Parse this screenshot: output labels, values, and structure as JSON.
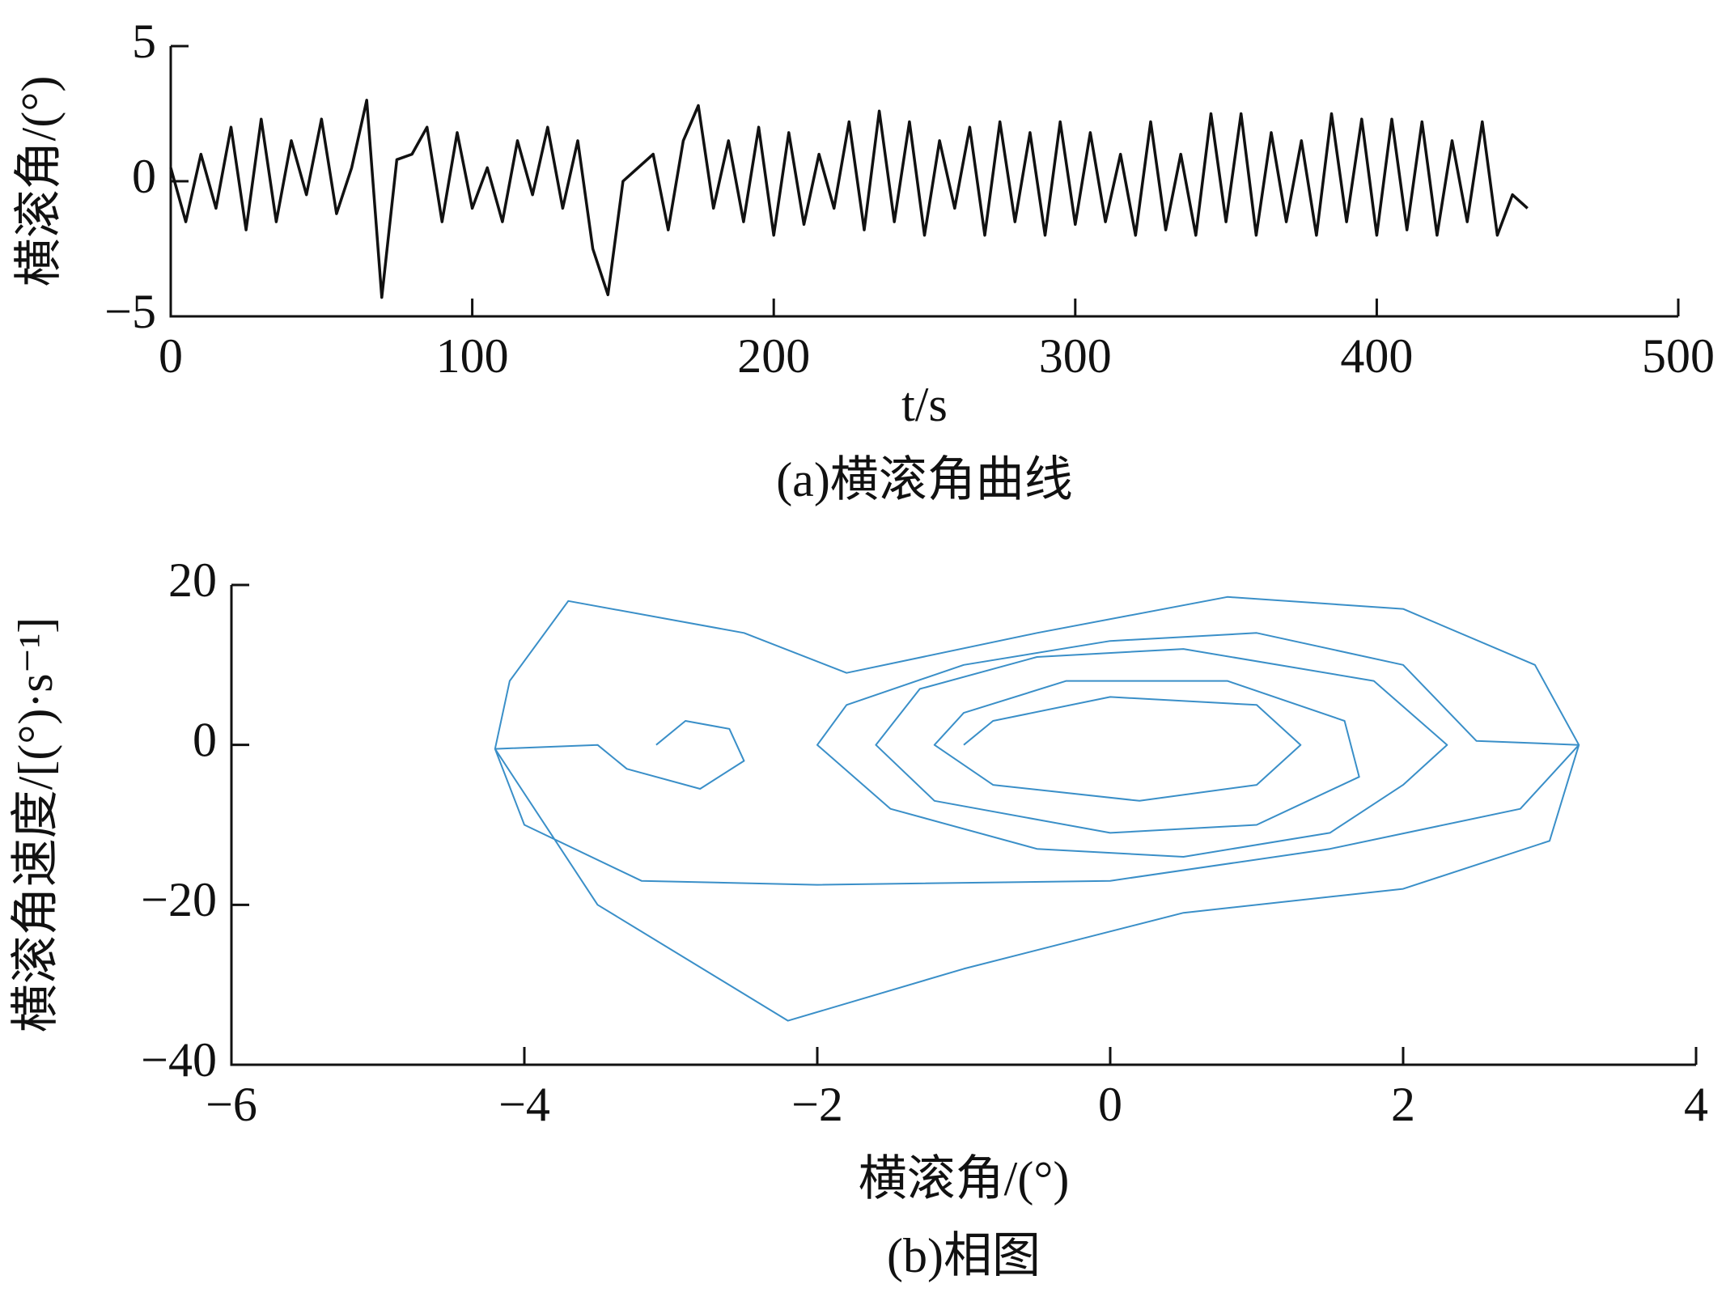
{
  "chart_data": [
    {
      "type": "line",
      "title": "(a)横滚角曲线",
      "x_label": "t/s",
      "y_label": "横滚角/(°)",
      "xlim": [
        0,
        500
      ],
      "xticks": [
        0,
        100,
        200,
        300,
        400,
        500
      ],
      "ylim": [
        -5,
        5
      ],
      "yticks": [
        {
          "value": -5,
          "label": "−5"
        },
        0,
        5
      ],
      "x": [
        0,
        5,
        10,
        15,
        20,
        25,
        30,
        35,
        40,
        45,
        50,
        55,
        60,
        65,
        70,
        75,
        80,
        85,
        90,
        95,
        100,
        105,
        110,
        115,
        120,
        125,
        130,
        135,
        140,
        145,
        150,
        155,
        160,
        165,
        170,
        175,
        180,
        185,
        190,
        195,
        200,
        205,
        210,
        215,
        220,
        225,
        230,
        235,
        240,
        245,
        250,
        255,
        260,
        265,
        270,
        275,
        280,
        285,
        290,
        295,
        300,
        305,
        310,
        315,
        320,
        325,
        330,
        335,
        340,
        345,
        350,
        355,
        360,
        365,
        370,
        375,
        380,
        385,
        390,
        395,
        400,
        405,
        410,
        415,
        420,
        425,
        430,
        435,
        440,
        445,
        450
      ],
      "series": [
        {
          "color": "#111111",
          "values": [
            0.5,
            -1.5,
            1,
            -1,
            2,
            -1.8,
            2.3,
            -1.5,
            1.5,
            -0.5,
            2.3,
            -1.2,
            0.5,
            3,
            -4.3,
            0.8,
            1,
            2,
            -1.5,
            1.8,
            -1,
            0.5,
            -1.5,
            1.5,
            -0.5,
            2,
            -1,
            1.5,
            -2.5,
            -4.2,
            0,
            0.5,
            1,
            -1.8,
            1.5,
            2.8,
            -1,
            1.5,
            -1.5,
            2,
            -2,
            1.8,
            -1.6,
            1,
            -1,
            2.2,
            -1.8,
            2.6,
            -1.5,
            2.2,
            -2,
            1.5,
            -1,
            2,
            -2,
            2.2,
            -1.5,
            1.8,
            -2,
            2.2,
            -1.6,
            1.8,
            -1.5,
            1,
            -2,
            2.2,
            -1.8,
            1,
            -2,
            2.5,
            -1.5,
            2.5,
            -2,
            1.8,
            -1.5,
            1.5,
            -2,
            2.5,
            -1.5,
            2.3,
            -2,
            2.3,
            -1.8,
            2.2,
            -2,
            1.5,
            -1.5,
            2.2,
            -2,
            -0.5,
            -1
          ]
        }
      ]
    },
    {
      "type": "line",
      "title": "(b)相图",
      "x_label": "横滚角/(°)",
      "y_label": "横滚角速度/[(°)·s⁻¹]",
      "xlim": [
        -6,
        4
      ],
      "xticks": [
        {
          "value": -6,
          "label": "−6"
        },
        {
          "value": -4,
          "label": "−4"
        },
        {
          "value": -2,
          "label": "−2"
        },
        0,
        2,
        4
      ],
      "ylim": [
        -40,
        20
      ],
      "yticks": [
        {
          "value": -40,
          "label": "−40"
        },
        {
          "value": -20,
          "label": "−20"
        },
        0,
        20
      ],
      "x": [
        -3.1,
        -2.9,
        -2.6,
        -2.5,
        -2.8,
        -3.3,
        -3.5,
        -4.2,
        -4.1,
        -3.7,
        -2.5,
        -1.8,
        -0.5,
        0.8,
        2,
        2.9,
        3.2,
        2.8,
        1.5,
        0,
        -2,
        -3.2,
        -4,
        -4.2,
        -3.5,
        -2.2,
        -1,
        0.5,
        2,
        3,
        3.2,
        2.5,
        2,
        1,
        0,
        -1,
        -1.8,
        -2,
        -1.5,
        -0.5,
        0.5,
        1.5,
        2,
        2.3,
        1.8,
        0.5,
        -0.5,
        -1.3,
        -1.6,
        -1.2,
        0,
        1,
        1.7,
        1.6,
        0.8,
        -0.3,
        -1,
        -1.2,
        -0.8,
        0.2,
        1,
        1.3,
        1,
        0,
        -0.8,
        -1
      ],
      "series": [
        {
          "color": "#3a8fc8",
          "values": [
            0,
            3,
            2,
            -2,
            -5.5,
            -3,
            0,
            -0.5,
            8,
            18,
            14,
            9,
            14,
            18.5,
            17,
            10,
            0,
            -8,
            -13,
            -17,
            -17.5,
            -17,
            -10,
            -0.5,
            -20,
            -34.5,
            -28,
            -21,
            -18,
            -12,
            0,
            0.5,
            10,
            14,
            13,
            10,
            5,
            0,
            -8,
            -13,
            -14,
            -11,
            -5,
            0,
            8,
            12,
            11,
            7,
            0,
            -7,
            -11,
            -10,
            -4,
            3,
            8,
            8,
            4,
            0,
            -5,
            -7,
            -5,
            0,
            5,
            6,
            3,
            0
          ]
        }
      ]
    }
  ]
}
